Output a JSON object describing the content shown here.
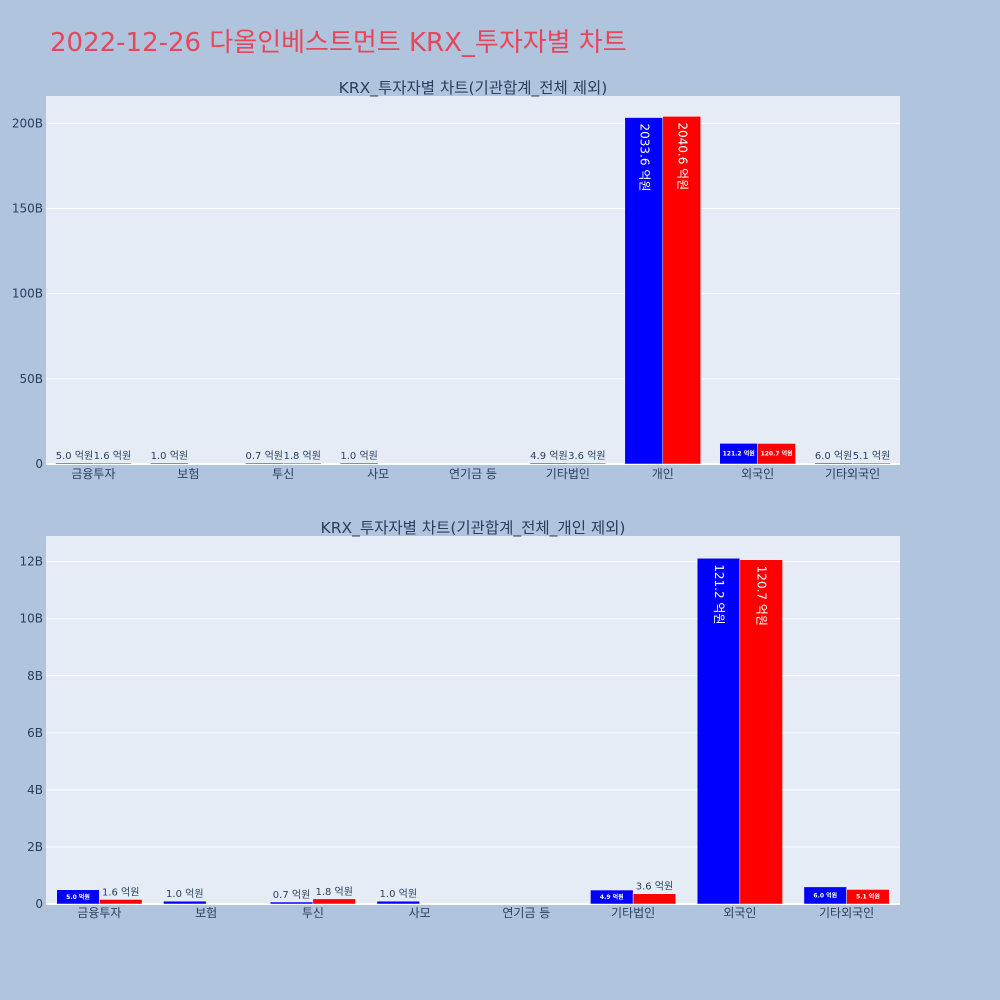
{
  "page": {
    "title": "2022-12-26 다올인베스트먼트 KRX_투자자별 차트"
  },
  "colors": {
    "page_background": "#b0c4de",
    "plot_background": "#e5ecf6",
    "title": "#e8465a",
    "text": "#2a3f5f",
    "series_1": "#0000ff",
    "series_2": "#ff0000"
  },
  "chart_data": [
    {
      "type": "bar",
      "title": "KRX_투자자별 차트(기관합계_전체 제외)",
      "categories": [
        "금융투자",
        "보험",
        "투신",
        "사모",
        "연기금 등",
        "기타법인",
        "개인",
        "외국인",
        "기타외국인"
      ],
      "series": [
        {
          "color": "#0000ff",
          "values": [
            500000000,
            100000000,
            70000000,
            100000000,
            0,
            490000000,
            203360000000,
            12120000000,
            600000000
          ],
          "labels": [
            "5.0 억원",
            "1.0 억원",
            "0.7 억원",
            "1.0 억원",
            "",
            "4.9 억원",
            "2033.6 억원",
            "121.2 억원",
            "6.0 억원"
          ]
        },
        {
          "color": "#ff0000",
          "values": [
            160000000,
            0,
            180000000,
            0,
            0,
            360000000,
            204060000000,
            12070000000,
            510000000
          ],
          "labels": [
            "1.6 억원",
            "",
            "1.8 억원",
            "",
            "",
            "3.6 억원",
            "2040.6 억원",
            "120.7 억원",
            "5.1 억원"
          ]
        }
      ],
      "y_ticks": [
        0,
        50000000000,
        100000000000,
        150000000000,
        200000000000
      ],
      "y_tick_labels": [
        "0",
        "50B",
        "100B",
        "150B",
        "200B"
      ],
      "ylim": [
        0,
        216000000000
      ],
      "grid": true
    },
    {
      "type": "bar",
      "title": "KRX_투자자별 차트(기관합계_전체_개인 제외)",
      "categories": [
        "금융투자",
        "보험",
        "투신",
        "사모",
        "연기금 등",
        "기타법인",
        "외국인",
        "기타외국인"
      ],
      "series": [
        {
          "color": "#0000ff",
          "values": [
            500000000,
            100000000,
            70000000,
            100000000,
            0,
            490000000,
            12120000000,
            600000000
          ],
          "labels": [
            "5.0 억원",
            "1.0 억원",
            "0.7 억원",
            "1.0 억원",
            "",
            "4.9 억원",
            "121.2 억원",
            "6.0 억원"
          ]
        },
        {
          "color": "#ff0000",
          "values": [
            160000000,
            0,
            180000000,
            0,
            0,
            360000000,
            12070000000,
            510000000
          ],
          "labels": [
            "1.6 억원",
            "",
            "1.8 억원",
            "",
            "",
            "3.6 억원",
            "120.7 억원",
            "5.1 억원"
          ]
        }
      ],
      "y_ticks": [
        0,
        2000000000,
        4000000000,
        6000000000,
        8000000000,
        10000000000,
        12000000000
      ],
      "y_tick_labels": [
        "0",
        "2B",
        "4B",
        "6B",
        "8B",
        "10B",
        "12B"
      ],
      "ylim": [
        0,
        12900000000
      ],
      "grid": true
    }
  ]
}
